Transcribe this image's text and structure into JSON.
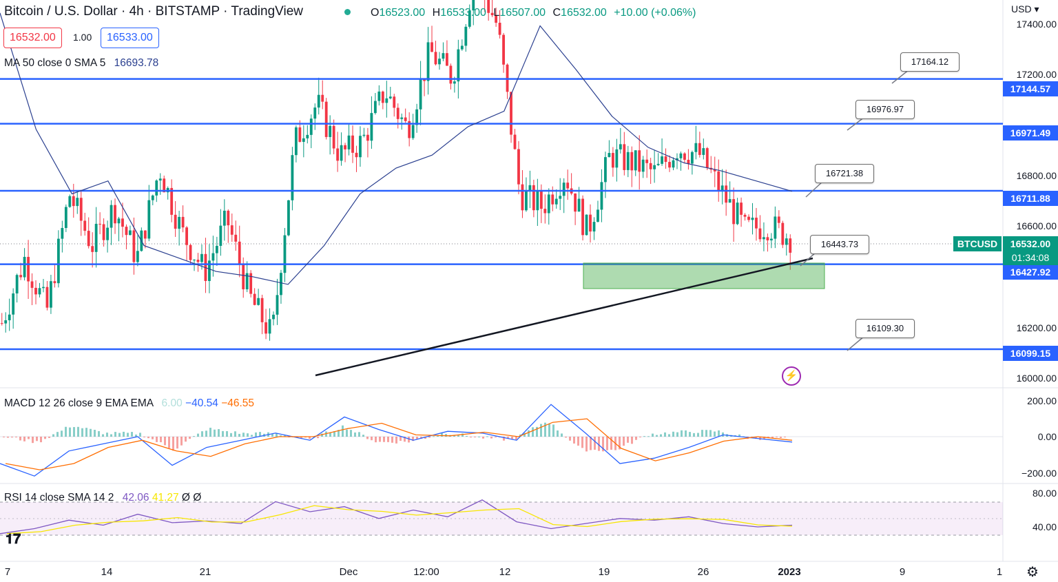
{
  "header": {
    "title": "Bitcoin / U.S. Dollar · 4h · BITSTAMP · TradingView",
    "ohlc": {
      "o_key": "O",
      "o": "16523.00",
      "h_key": "H",
      "h": "16533.00",
      "l_key": "L",
      "l": "16507.00",
      "c_key": "C",
      "c": "16532.00",
      "change": "+10.00 (+0.06%)"
    },
    "bid": "16532.00",
    "spread": "1.00",
    "ask": "16533.00",
    "currency": "USD ▾"
  },
  "indicators": {
    "ma_label": "MA 50 close 0 SMA 5",
    "ma_value": "16693.78",
    "macd_label": "MACD 12 26 close 9 EMA EMA",
    "macd_v1": "6.00",
    "macd_v2": "−40.54",
    "macd_v3": "−46.55",
    "rsi_label": "RSI 14 close SMA 14 2",
    "rsi_v1": "42.06",
    "rsi_v2": "41.27",
    "rsi_v3": "Ø",
    "rsi_v4": "Ø"
  },
  "price_axis": [
    "17400.00",
    "17200.00",
    "16800.00",
    "16600.00",
    "16200.00",
    "16000.00"
  ],
  "macd_axis": [
    "200.00",
    "0.00",
    "−200.00"
  ],
  "rsi_axis": [
    "80.00",
    "40.00"
  ],
  "time_axis": [
    "7",
    "14",
    "21",
    "Dec",
    "12:00",
    "12",
    "19",
    "26",
    "2023",
    "9",
    "1"
  ],
  "levels": [
    {
      "value": "17144.57",
      "color": "#2962ff"
    },
    {
      "value": "16971.49",
      "color": "#2962ff"
    },
    {
      "value": "16711.88",
      "color": "#2962ff"
    },
    {
      "value": "16427.92",
      "color": "#2962ff"
    },
    {
      "value": "16099.15",
      "color": "#2962ff"
    }
  ],
  "callouts": [
    "17164.12",
    "16976.97",
    "16721.38",
    "16443.73",
    "16109.30"
  ],
  "current": {
    "symbol": "BTCUSD",
    "price": "16532.00",
    "countdown": "01:34:08",
    "color": "#089981"
  },
  "icons": {
    "logo": "tradingview-logo-icon",
    "settings": "gear-icon",
    "alert": "lightning-icon"
  },
  "chart_data": {
    "type": "candlestick",
    "symbol": "BTCUSD",
    "timeframe": "4h",
    "ylim": [
      15950,
      17450
    ],
    "horizontal_levels": [
      17144.57,
      16971.49,
      16711.88,
      16427.92,
      16099.15
    ],
    "trendline": {
      "from": {
        "x": "Nov 27",
        "y": 16040
      },
      "to": {
        "x": "Jan 1",
        "y": 16450
      }
    },
    "support_zone": {
      "y": [
        16380,
        16490
      ],
      "x": [
        "Dec 19",
        "Jan 2"
      ]
    },
    "close_path": [
      16200,
      16450,
      16250,
      16700,
      16500,
      16650,
      16450,
      16800,
      16550,
      16400,
      16600,
      16300,
      16150,
      16900,
      17050,
      16850,
      16900,
      17100,
      16950,
      17250,
      17150,
      17550,
      17350,
      16700,
      16650,
      16780,
      16550,
      16850,
      16820,
      16780,
      16880,
      16850,
      16700,
      16560,
      16580,
      16532
    ],
    "ma50_path": [
      17400,
      16950,
      16700,
      16750,
      16500,
      16450,
      16400,
      16380,
      16350,
      16500,
      16700,
      16800,
      16850,
      16960,
      17020,
      17350,
      17180,
      17000,
      16880,
      16820,
      16790,
      16750,
      16710
    ],
    "macd_path": [
      -150,
      -220,
      -80,
      -40,
      0,
      -160,
      -60,
      -20,
      20,
      -20,
      110,
      40,
      -20,
      30,
      20,
      -20,
      180,
      20,
      -150,
      -120,
      -60,
      10,
      -10,
      -30
    ],
    "rsi_path": [
      32,
      38,
      48,
      42,
      55,
      45,
      47,
      44,
      70,
      58,
      64,
      50,
      60,
      52,
      72,
      46,
      38,
      44,
      50,
      48,
      52,
      44,
      40,
      42
    ]
  }
}
